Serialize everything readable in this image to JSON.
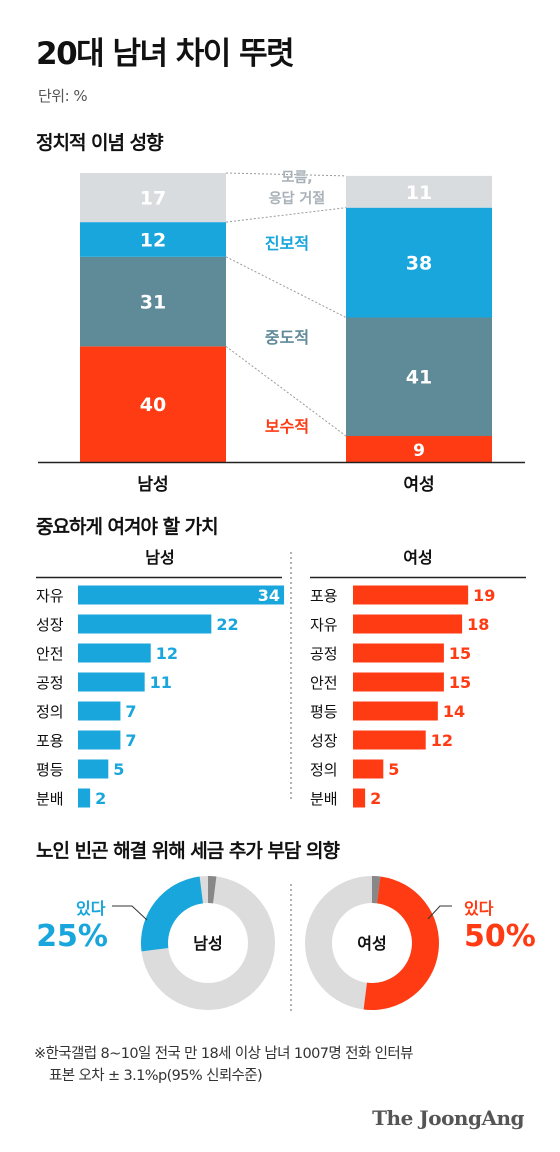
{
  "header": {
    "title": "20대 남녀 차이 뚜렷",
    "unit": "단위: %"
  },
  "colors": {
    "blue": "#18a6dc",
    "teal": "#5f8a98",
    "red": "#ff3b14",
    "light_gray": "#d8dcdf",
    "donut_gray": "#dcdcdc",
    "donut_dark": "#888888"
  },
  "chart_data": [
    {
      "type": "bar",
      "stacked": true,
      "title": "정치적 이념 성향",
      "categories": [
        "남성",
        "여성"
      ],
      "series": [
        {
          "name": "보수적",
          "color": "#ff3b14",
          "values": [
            40,
            9
          ]
        },
        {
          "name": "중도적",
          "color": "#5f8a98",
          "values": [
            31,
            41
          ]
        },
        {
          "name": "진보적",
          "color": "#18a6dc",
          "values": [
            12,
            38
          ]
        },
        {
          "name": "모름, 응답 거절",
          "color": "#d8dcdf",
          "values": [
            17,
            11
          ]
        }
      ],
      "ylim": [
        0,
        100
      ]
    },
    {
      "type": "bar",
      "orientation": "horizontal",
      "title": "중요하게 여겨야 할 가치",
      "panels": [
        {
          "name": "남성",
          "color": "#18a6dc",
          "categories": [
            "자유",
            "성장",
            "안전",
            "공정",
            "정의",
            "포용",
            "평등",
            "분배"
          ],
          "values": [
            34,
            22,
            12,
            11,
            7,
            7,
            5,
            2
          ]
        },
        {
          "name": "여성",
          "color": "#ff3b14",
          "categories": [
            "포용",
            "자유",
            "공정",
            "안전",
            "평등",
            "성장",
            "정의",
            "분배"
          ],
          "values": [
            19,
            18,
            15,
            15,
            14,
            12,
            5,
            2
          ]
        }
      ]
    },
    {
      "type": "pie",
      "donut": true,
      "title": "노인 빈곤 해결 위해 세금 추가 부담 의향",
      "charts": [
        {
          "name": "남성",
          "highlight_label": "있다",
          "highlight_value": 25,
          "highlight_text": "25%",
          "color": "#18a6dc",
          "unknown": 2
        },
        {
          "name": "여성",
          "highlight_label": "있다",
          "highlight_value": 50,
          "highlight_text": "50%",
          "color": "#ff3b14",
          "unknown": 2
        }
      ]
    }
  ],
  "footnote": {
    "line1": "※한국갤럽 8~10일 전국 만 18세 이상 남녀 1007명 전화 인터뷰",
    "line2": "표본 오차 ± 3.1%p(95% 신뢰수준)"
  },
  "logo": "The JoongAng"
}
